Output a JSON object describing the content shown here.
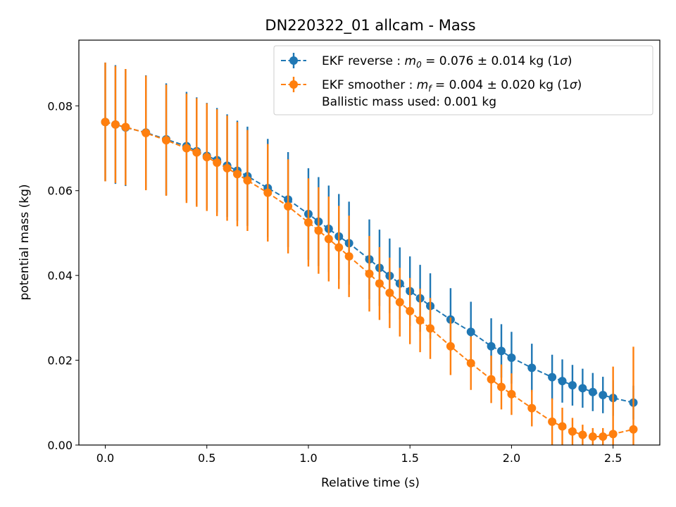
{
  "chart_data": {
    "type": "line",
    "title": "DN220322_01 allcam - Mass",
    "xlabel": "Relative time (s)",
    "ylabel": "potential mass (kg)",
    "xlim": [
      -0.13,
      2.73
    ],
    "ylim": [
      0.0,
      0.0955
    ],
    "xticks": [
      0.0,
      0.5,
      1.0,
      1.5,
      2.0,
      2.5
    ],
    "xtick_labels": [
      "0.0",
      "0.5",
      "1.0",
      "1.5",
      "2.0",
      "2.5"
    ],
    "yticks": [
      0.0,
      0.02,
      0.04,
      0.06,
      0.08
    ],
    "ytick_labels": [
      "0.00",
      "0.02",
      "0.04",
      "0.06",
      "0.08"
    ],
    "grid": false,
    "legend_position": "top-right",
    "series": [
      {
        "name": "EKF reverse : m0 = 0.076 ± 0.014 kg (1σ)",
        "legend_label": {
          "prefix": "EKF reverse : ",
          "var": "m",
          "sub": "0",
          "suffix": " =  0.076 ± 0.014 kg (1",
          "sigma": "σ",
          "close": ")"
        },
        "color": "#1f77b4",
        "x": [
          0.0,
          0.05,
          0.1,
          0.2,
          0.3,
          0.4,
          0.45,
          0.5,
          0.55,
          0.6,
          0.65,
          0.7,
          0.8,
          0.9,
          1.0,
          1.05,
          1.1,
          1.15,
          1.2,
          1.3,
          1.35,
          1.4,
          1.45,
          1.5,
          1.55,
          1.6,
          1.7,
          1.8,
          1.9,
          1.95,
          2.0,
          2.1,
          2.2,
          2.25,
          2.3,
          2.35,
          2.4,
          2.45,
          2.5,
          2.6
        ],
        "y": [
          0.0762,
          0.0756,
          0.0749,
          0.0737,
          0.0721,
          0.0705,
          0.0693,
          0.0682,
          0.0672,
          0.0659,
          0.0647,
          0.0634,
          0.0606,
          0.0579,
          0.0545,
          0.0527,
          0.051,
          0.0492,
          0.0476,
          0.0438,
          0.0418,
          0.0399,
          0.0381,
          0.0363,
          0.0346,
          0.0328,
          0.0296,
          0.0267,
          0.0233,
          0.0222,
          0.0206,
          0.0182,
          0.016,
          0.0151,
          0.0141,
          0.0134,
          0.0125,
          0.0118,
          0.0111,
          0.01
        ],
        "err": [
          0.014,
          0.014,
          0.0138,
          0.0135,
          0.0132,
          0.0128,
          0.0127,
          0.0125,
          0.0123,
          0.0121,
          0.0118,
          0.0117,
          0.0116,
          0.0112,
          0.0108,
          0.0105,
          0.0102,
          0.01,
          0.0098,
          0.0094,
          0.009,
          0.0088,
          0.0085,
          0.0082,
          0.0079,
          0.0077,
          0.0074,
          0.0071,
          0.0066,
          0.0063,
          0.0061,
          0.0057,
          0.0053,
          0.0051,
          0.0048,
          0.0046,
          0.0045,
          0.0043,
          0.0042,
          0.004
        ]
      },
      {
        "name": "EKF smoother : mf = 0.004 ± 0.020 kg (1σ) Ballistic mass used: 0.001 kg",
        "legend_label": {
          "prefix": "EKF smoother : ",
          "var": "m",
          "sub": "f",
          "suffix": " =  0.004 ± 0.020 kg (1",
          "sigma": "σ",
          "close": ")",
          "line2": " Ballistic mass used: 0.001 kg"
        },
        "color": "#ff7f0e",
        "x": [
          0.0,
          0.05,
          0.1,
          0.2,
          0.3,
          0.4,
          0.45,
          0.5,
          0.55,
          0.6,
          0.65,
          0.7,
          0.8,
          0.9,
          1.0,
          1.05,
          1.1,
          1.15,
          1.2,
          1.3,
          1.35,
          1.4,
          1.45,
          1.5,
          1.55,
          1.6,
          1.7,
          1.8,
          1.9,
          1.95,
          2.0,
          2.1,
          2.2,
          2.25,
          2.3,
          2.35,
          2.4,
          2.45,
          2.5,
          2.6
        ],
        "y": [
          0.0762,
          0.0756,
          0.075,
          0.0736,
          0.0719,
          0.07,
          0.069,
          0.0679,
          0.0666,
          0.0653,
          0.0639,
          0.0624,
          0.0595,
          0.0563,
          0.0525,
          0.0506,
          0.0486,
          0.0466,
          0.0445,
          0.0404,
          0.0381,
          0.0359,
          0.0337,
          0.0316,
          0.0294,
          0.0275,
          0.0233,
          0.0193,
          0.0155,
          0.0137,
          0.012,
          0.0087,
          0.0055,
          0.0044,
          0.0032,
          0.0024,
          0.002,
          0.002,
          0.0026,
          0.0037
        ],
        "err": [
          0.014,
          0.0138,
          0.0137,
          0.0135,
          0.0131,
          0.0129,
          0.0128,
          0.0127,
          0.0126,
          0.0124,
          0.0123,
          0.0119,
          0.0115,
          0.0111,
          0.0104,
          0.0102,
          0.01,
          0.0098,
          0.0096,
          0.0089,
          0.0086,
          0.0083,
          0.0081,
          0.0078,
          0.0075,
          0.0072,
          0.0068,
          0.0063,
          0.0056,
          0.0053,
          0.0049,
          0.0043,
          0.0055,
          0.0044,
          0.0032,
          0.0024,
          0.002,
          0.002,
          0.0159,
          0.0195
        ]
      }
    ]
  }
}
